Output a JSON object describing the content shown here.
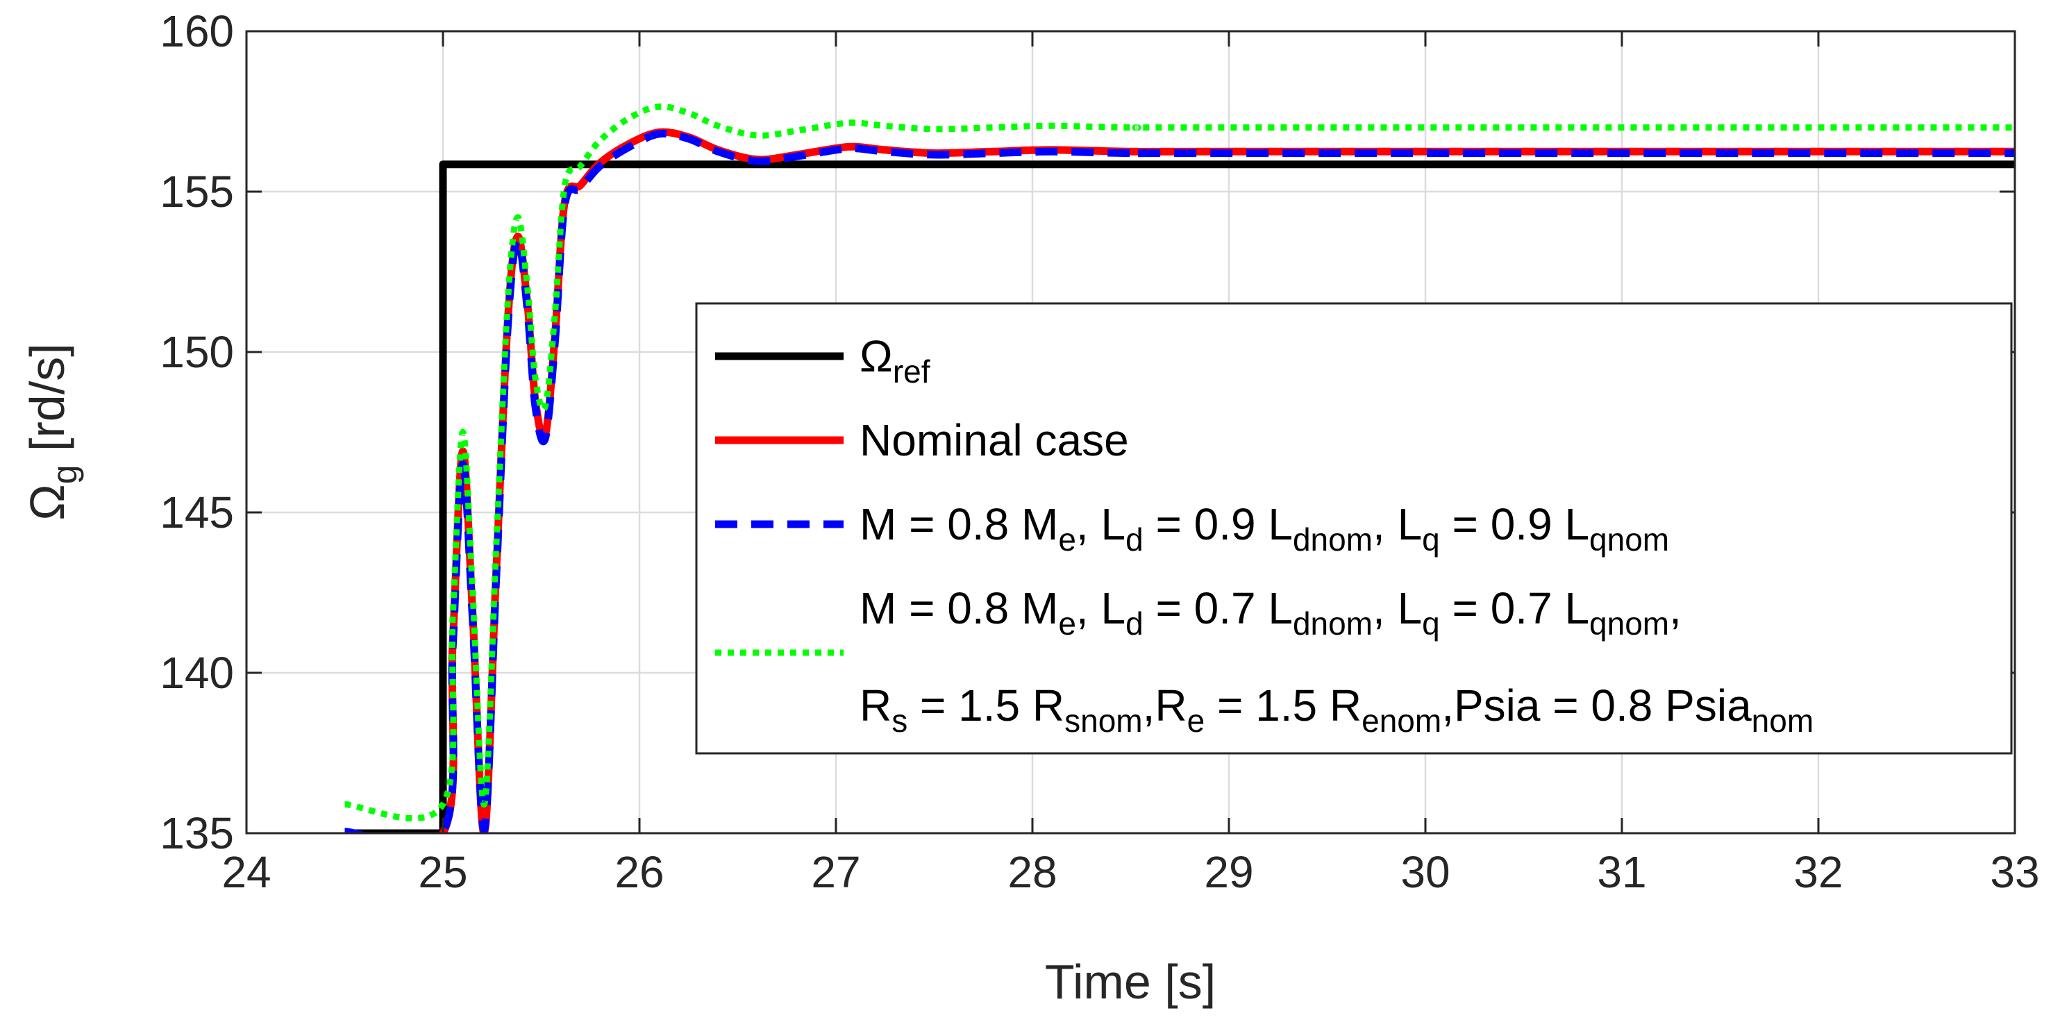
{
  "chart_data": {
    "type": "line",
    "title": "",
    "xlabel": "Time [s]",
    "ylabel": {
      "main": "Ω",
      "sub": "g",
      "unit": " [rd/s]"
    },
    "xlim": [
      24,
      33
    ],
    "ylim": [
      135,
      160
    ],
    "xticks": [
      24,
      25,
      26,
      27,
      28,
      29,
      30,
      31,
      32,
      33
    ],
    "yticks": [
      135,
      140,
      145,
      150,
      155,
      160
    ],
    "grid": true,
    "legend_position": "right-center",
    "series": [
      {
        "name": "Omega_ref",
        "color": "#000000",
        "style": "solid",
        "x": [
          24.5,
          25.0,
          25.0,
          33.0
        ],
        "y": [
          135.0,
          135.0,
          155.85,
          155.85
        ]
      },
      {
        "name": "Nominal case",
        "color": "#ff0000",
        "style": "solid",
        "x": [
          24.5,
          25.0,
          25.05,
          25.1,
          25.15,
          25.21,
          25.27,
          25.33,
          25.38,
          25.43,
          25.47,
          25.52,
          25.57,
          25.62,
          25.7,
          25.8,
          25.95,
          26.1,
          26.25,
          26.4,
          26.6,
          26.8,
          27.0,
          27.1,
          27.25,
          27.5,
          27.8,
          28.1,
          28.5,
          29.0,
          33.0
        ],
        "y": [
          135.0,
          135.0,
          141.0,
          146.9,
          142.0,
          135.0,
          143.0,
          151.0,
          153.6,
          151.5,
          148.5,
          147.4,
          150.5,
          154.7,
          155.2,
          155.9,
          156.5,
          156.85,
          156.7,
          156.3,
          156.0,
          156.15,
          156.35,
          156.4,
          156.3,
          156.2,
          156.25,
          156.3,
          156.25,
          156.25,
          156.25
        ]
      },
      {
        "name": "M = 0.8 Me, Ld = 0.9 Ldnom, Lq = 0.9 Lqnom",
        "color": "#0000ff",
        "style": "dashed",
        "x": [
          24.5,
          25.0,
          25.05,
          25.1,
          25.15,
          25.21,
          25.27,
          25.33,
          25.38,
          25.43,
          25.47,
          25.52,
          25.57,
          25.62,
          25.7,
          25.8,
          25.95,
          26.1,
          26.25,
          26.4,
          26.6,
          26.8,
          27.0,
          27.1,
          27.25,
          27.5,
          27.8,
          28.1,
          28.5,
          29.0,
          33.0
        ],
        "y": [
          135.05,
          135.05,
          140.8,
          146.5,
          141.8,
          135.1,
          142.8,
          150.8,
          153.5,
          151.3,
          148.3,
          147.3,
          150.3,
          154.6,
          155.1,
          155.8,
          156.4,
          156.8,
          156.65,
          156.25,
          155.95,
          156.1,
          156.3,
          156.35,
          156.25,
          156.15,
          156.2,
          156.25,
          156.2,
          156.2,
          156.2
        ]
      },
      {
        "name": "M = 0.8 Me, Ld = 0.7 Ldnom, Lq = 0.7 Lqnom, Rs = 1.5 Rsnom, Re = 1.5 Renom, Psia = 0.8 Psianom",
        "color": "#00ff00",
        "style": "dotted",
        "x": [
          24.5,
          25.0,
          25.05,
          25.1,
          25.15,
          25.21,
          25.27,
          25.33,
          25.38,
          25.43,
          25.47,
          25.52,
          25.57,
          25.62,
          25.7,
          25.8,
          25.95,
          26.1,
          26.25,
          26.4,
          26.6,
          26.8,
          27.0,
          27.1,
          27.25,
          27.5,
          27.8,
          28.1,
          28.5,
          29.0,
          33.0
        ],
        "y": [
          135.9,
          135.9,
          141.8,
          147.5,
          142.7,
          135.9,
          143.8,
          151.6,
          154.2,
          152.0,
          149.2,
          148.3,
          151.2,
          155.2,
          155.8,
          156.6,
          157.3,
          157.65,
          157.45,
          157.05,
          156.75,
          156.9,
          157.1,
          157.15,
          157.05,
          156.95,
          157.0,
          157.05,
          157.0,
          157.0,
          157.0
        ]
      }
    ]
  },
  "legend": {
    "items": [
      {
        "parts": [
          {
            "t": "Ω"
          },
          {
            "t": "ref",
            "sub": true
          }
        ]
      },
      {
        "parts": [
          {
            "t": "Nominal case"
          }
        ]
      },
      {
        "parts": [
          {
            "t": "M = 0.8 M"
          },
          {
            "t": "e",
            "sub": true
          },
          {
            "t": ", L"
          },
          {
            "t": "d",
            "sub": true
          },
          {
            "t": " = 0.9 L"
          },
          {
            "t": "dnom",
            "sub": true
          },
          {
            "t": ", L"
          },
          {
            "t": "q",
            "sub": true
          },
          {
            "t": " = 0.9 L"
          },
          {
            "t": "qnom",
            "sub": true
          }
        ]
      },
      {
        "parts": [
          {
            "t": "M = 0.8 M"
          },
          {
            "t": "e",
            "sub": true
          },
          {
            "t": ", L"
          },
          {
            "t": "d",
            "sub": true
          },
          {
            "t": " = 0.7 L"
          },
          {
            "t": "dnom",
            "sub": true
          },
          {
            "t": ", L"
          },
          {
            "t": "q",
            "sub": true
          },
          {
            "t": " = 0.7 L"
          },
          {
            "t": "qnom",
            "sub": true
          },
          {
            "t": ","
          }
        ],
        "line2": [
          {
            "t": "R"
          },
          {
            "t": "s",
            "sub": true
          },
          {
            "t": " = 1.5 R"
          },
          {
            "t": "snom",
            "sub": true
          },
          {
            "t": ",R"
          },
          {
            "t": "e",
            "sub": true
          },
          {
            "t": " = 1.5 R"
          },
          {
            "t": "enom",
            "sub": true
          },
          {
            "t": ",Psia = 0.8 Psia"
          },
          {
            "t": "nom",
            "sub": true
          }
        ]
      }
    ]
  }
}
